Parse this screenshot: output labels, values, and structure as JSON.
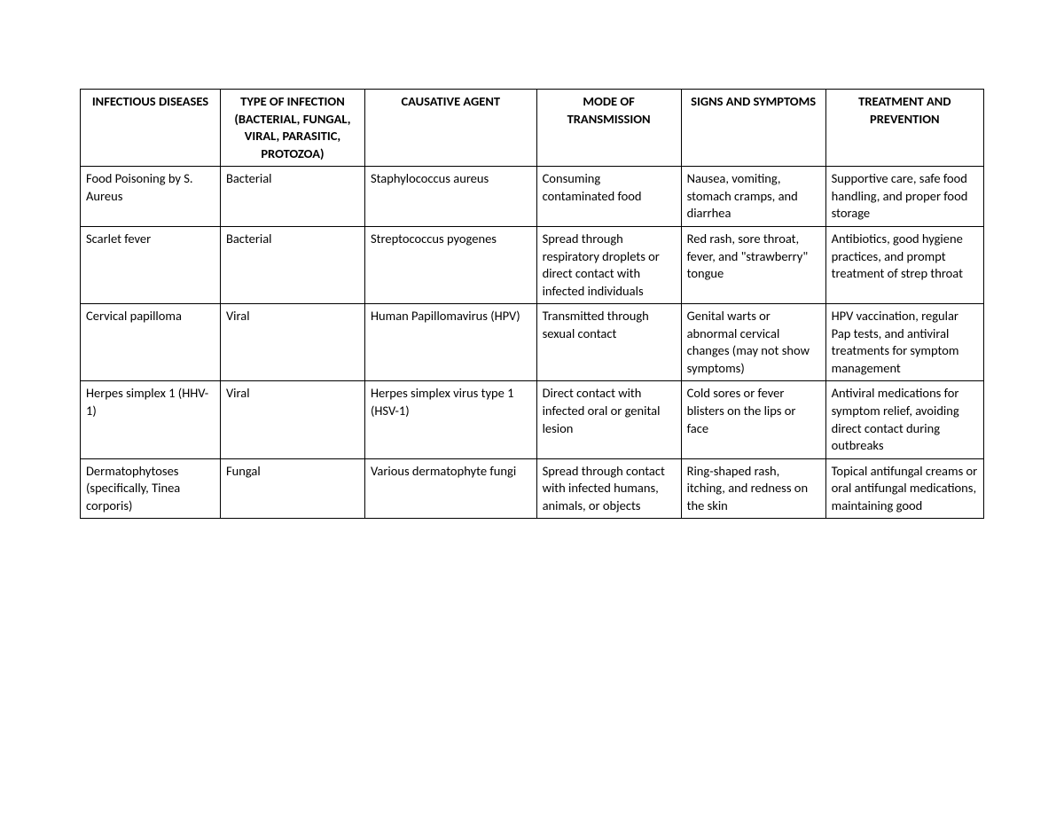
{
  "table": {
    "columns": [
      "INFECTIOUS DISEASES",
      "TYPE OF INFECTION (BACTERIAL, FUNGAL, VIRAL, PARASITIC, PROTOZOA)",
      "CAUSATIVE AGENT",
      "MODE OF TRANSMISSION",
      "SIGNS AND SYMPTOMS",
      "TREATMENT AND PREVENTION"
    ],
    "rows": [
      {
        "cells": [
          "Food Poisoning by S. Aureus",
          "Bacterial",
          "Staphylococcus aureus",
          "Consuming contaminated food",
          "Nausea, vomiting, stomach cramps, and diarrhea",
          "Supportive care, safe food handling, and proper food storage"
        ]
      },
      {
        "cells": [
          "Scarlet fever",
          "Bacterial",
          "Streptococcus pyogenes",
          "Spread through respiratory droplets or direct contact with infected individuals",
          "Red rash, sore throat, fever, and \"strawberry\" tongue",
          "Antibiotics, good hygiene practices, and prompt treatment of strep throat"
        ]
      },
      {
        "cells": [
          "Cervical papilloma",
          "Viral",
          "Human Papillomavirus (HPV)",
          "Transmitted through sexual contact",
          "Genital warts or abnormal cervical changes (may not show symptoms)",
          "HPV vaccination, regular Pap tests, and antiviral treatments for symptom management"
        ]
      },
      {
        "cells": [
          "Herpes simplex 1 (HHV-1)",
          "Viral",
          "Herpes simplex virus type 1 (HSV-1)",
          "Direct contact with infected oral or genital lesion",
          "Cold sores or fever blisters on the lips or face",
          " Antiviral medications for symptom relief, avoiding direct contact during outbreaks"
        ]
      },
      {
        "cells": [
          "Dermatophytoses (specifically, Tinea corporis)",
          "Fungal",
          "Various dermatophyte fungi",
          "Spread through contact with infected humans, animals, or objects",
          "Ring-shaped rash, itching, and redness on the skin",
          "Topical antifungal creams or oral antifungal medications, maintaining good"
        ]
      }
    ],
    "border_color": "#000000",
    "background_color": "#ffffff",
    "text_color": "#000000",
    "header_fontsize": 14.5,
    "body_fontsize": 14.5,
    "font_family": "Calibri",
    "column_widths_pct": [
      15.5,
      16,
      19,
      16,
      16,
      17.5
    ]
  }
}
